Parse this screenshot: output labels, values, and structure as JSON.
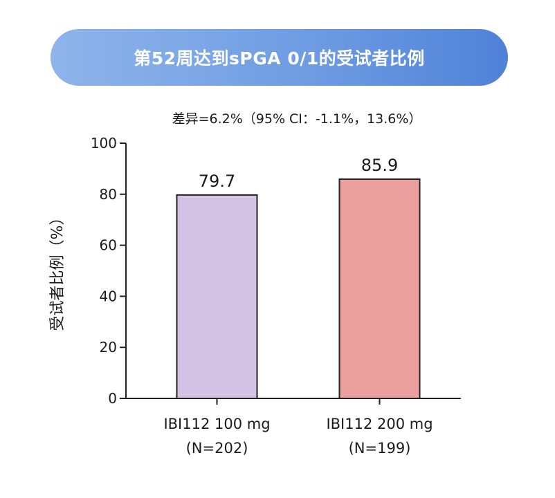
{
  "title": "第52周达到sPGA 0/1的受试者比例",
  "chart_data": {
    "type": "bar",
    "subtitle": "差异=6.2%（95% CI：-1.1%，13.6%）",
    "ylabel": "受试者比例（%）",
    "xlabel": "",
    "ylim": [
      0,
      100
    ],
    "yticks": [
      0,
      20,
      40,
      60,
      80,
      100
    ],
    "grid": false,
    "categories": [
      {
        "line1": "IBI112 100 mg",
        "line2": "(N=202)"
      },
      {
        "line1": "IBI112 200 mg",
        "line2": "(N=199)"
      }
    ],
    "values": [
      79.7,
      85.9
    ],
    "value_labels": [
      "79.7",
      "85.9"
    ],
    "colors": [
      "#d3c2e4",
      "#eb9f9e"
    ],
    "bar_stroke": "#222222"
  }
}
